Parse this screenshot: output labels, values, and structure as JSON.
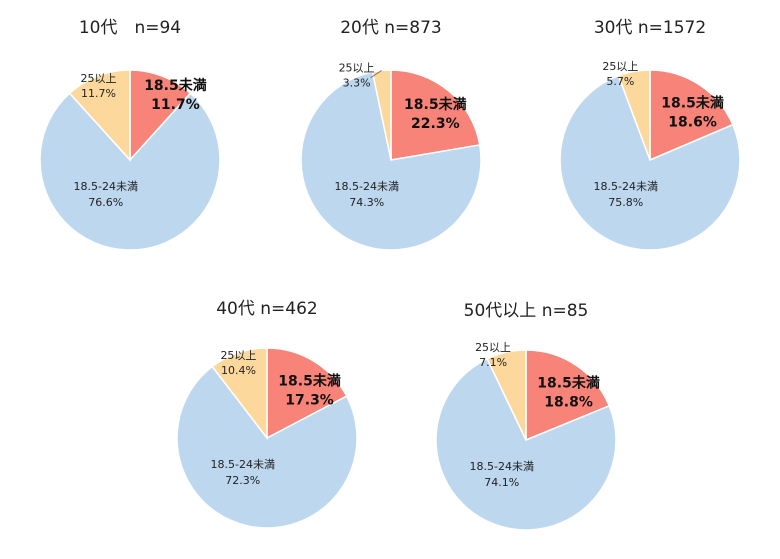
{
  "colors": {
    "under": "#f88379",
    "normal": "#bdd7ee",
    "over": "#fdd89c"
  },
  "chart_data": [
    {
      "type": "pie",
      "title": "10代　n=94",
      "slices": [
        {
          "name": "18.5未満",
          "value": 11.7,
          "label": "11.7%"
        },
        {
          "name": "18.5-24未満",
          "value": 76.6,
          "label": "76.6%"
        },
        {
          "name": "25以上",
          "value": 11.7,
          "label": "11.7%"
        }
      ]
    },
    {
      "type": "pie",
      "title": "20代 n=873",
      "slices": [
        {
          "name": "18.5未満",
          "value": 22.3,
          "label": "22.3%"
        },
        {
          "name": "18.5-24未満",
          "value": 74.3,
          "label": "74.3%"
        },
        {
          "name": "25以上",
          "value": 3.3,
          "label": "3.3%"
        }
      ]
    },
    {
      "type": "pie",
      "title": "30代 n=1572",
      "slices": [
        {
          "name": "18.5未満",
          "value": 18.6,
          "label": "18.6%"
        },
        {
          "name": "18.5-24未満",
          "value": 75.8,
          "label": "75.8%"
        },
        {
          "name": "25以上",
          "value": 5.7,
          "label": "5.7%"
        }
      ]
    },
    {
      "type": "pie",
      "title": "40代 n=462",
      "slices": [
        {
          "name": "18.5未満",
          "value": 17.3,
          "label": "17.3%"
        },
        {
          "name": "18.5-24未満",
          "value": 72.3,
          "label": "72.3%"
        },
        {
          "name": "25以上",
          "value": 10.4,
          "label": "10.4%"
        }
      ]
    },
    {
      "type": "pie",
      "title": "50代以上 n=85",
      "slices": [
        {
          "name": "18.5未満",
          "value": 18.8,
          "label": "18.8%"
        },
        {
          "name": "18.5-24未満",
          "value": 74.1,
          "label": "74.1%"
        },
        {
          "name": "25以上",
          "value": 7.1,
          "label": "7.1%"
        }
      ]
    }
  ]
}
